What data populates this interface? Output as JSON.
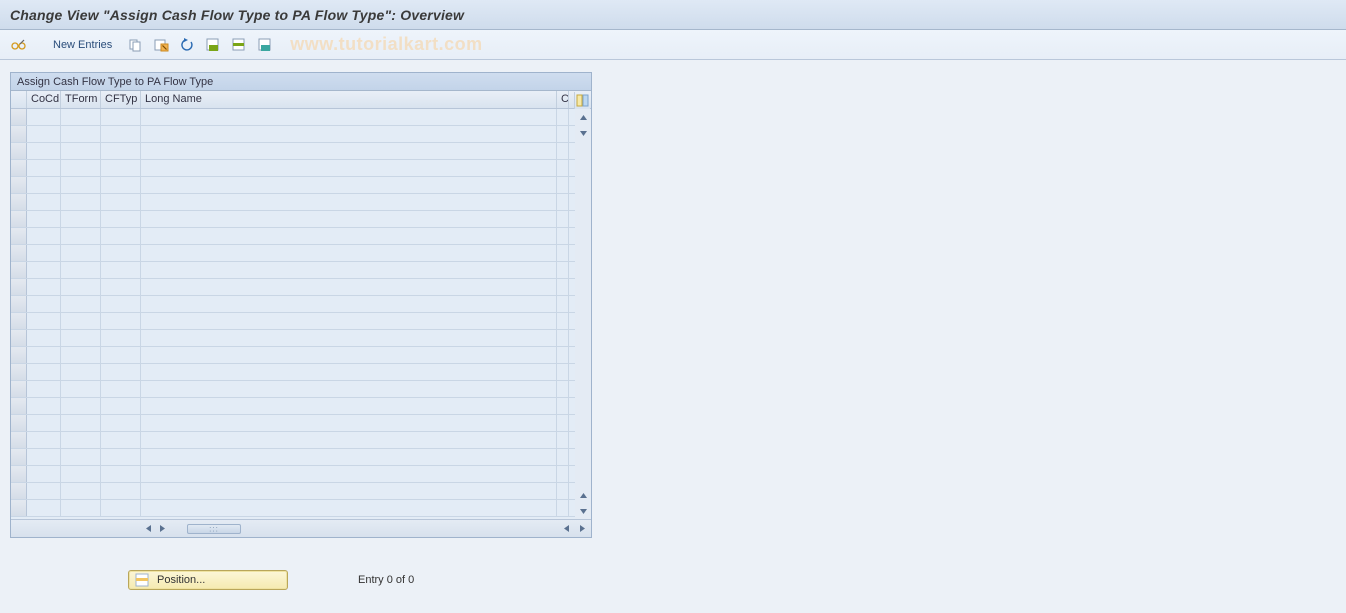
{
  "title": "Change View \"Assign Cash Flow Type to PA Flow Type\": Overview",
  "toolbar": {
    "new_entries_label": "New Entries"
  },
  "watermark": "www.tutorialkart.com",
  "panel": {
    "caption": "Assign Cash Flow Type to PA Flow Type",
    "columns": {
      "cocd": "CoCd",
      "tform": "TForm",
      "cftyp": "CFTyp",
      "longname": "Long Name",
      "trailing": "Ca"
    },
    "row_count": 24
  },
  "position_button_label": "Position...",
  "entry_text": "Entry 0 of 0",
  "colors": {
    "page_bg": "#e6ecf2",
    "titlebar_top": "#dfe9f5",
    "titlebar_bottom": "#cfdcec",
    "panel_border": "#9fb3cc",
    "grid_line": "#c9d6e5",
    "accent_yellow_top": "#fcf6d8",
    "accent_yellow_bottom": "#f5eab0",
    "watermark": "#f2dfc5",
    "icon_green": "#7aa517",
    "icon_orange": "#e2932a",
    "icon_blue": "#2b6bb3",
    "icon_teal": "#3ba7a0"
  }
}
